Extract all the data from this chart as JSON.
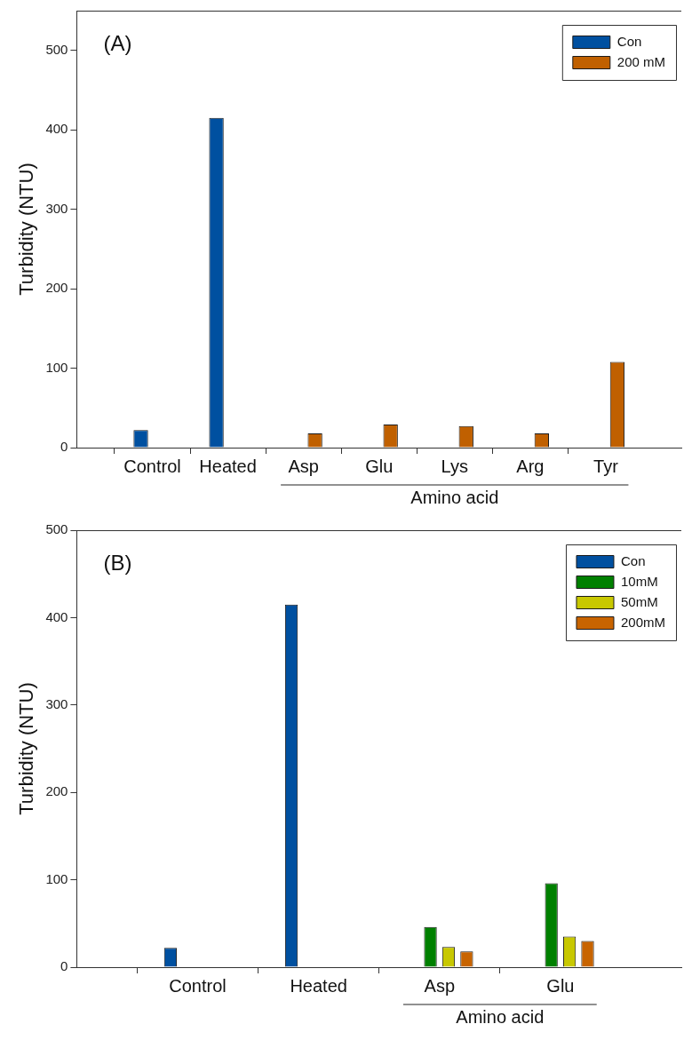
{
  "chart_data": [
    {
      "type": "bar",
      "title": "(A)",
      "ylabel": "Turbidity (NTU)",
      "categories": [
        "Control",
        "Heated",
        "Asp",
        "Glu",
        "Lys",
        "Arg",
        "Tyr"
      ],
      "series": [
        {
          "name": "Con",
          "color": "#0050a0",
          "values": [
            22,
            415,
            null,
            null,
            null,
            null,
            null
          ]
        },
        {
          "name": "200 mM",
          "color": "#c06000",
          "values": [
            null,
            null,
            18,
            29,
            27,
            18,
            108
          ]
        }
      ],
      "ylim": [
        0,
        550
      ],
      "yticks": [
        0,
        100,
        200,
        300,
        400,
        500
      ],
      "legend": "top right",
      "annotations": [
        "Amino acid"
      ]
    },
    {
      "type": "bar",
      "title": "(B)",
      "ylabel": "Turbidity (NTU)",
      "categories": [
        "Control",
        "Heated",
        "Asp",
        "Glu"
      ],
      "series": [
        {
          "name": "Con",
          "color": "#0050a0",
          "values": [
            22,
            415,
            null,
            null
          ]
        },
        {
          "name": "10mM",
          "color": "#008000",
          "values": [
            null,
            null,
            46,
            96
          ]
        },
        {
          "name": "50mM",
          "color": "#c8c800",
          "values": [
            null,
            null,
            23,
            35
          ]
        },
        {
          "name": "200mM",
          "color": "#c86400",
          "values": [
            null,
            null,
            18,
            30
          ]
        }
      ],
      "ylim": [
        0,
        500
      ],
      "yticks": [
        0,
        100,
        200,
        300,
        400,
        500
      ],
      "legend": "top right",
      "annotations": [
        "Amino acid"
      ]
    }
  ]
}
